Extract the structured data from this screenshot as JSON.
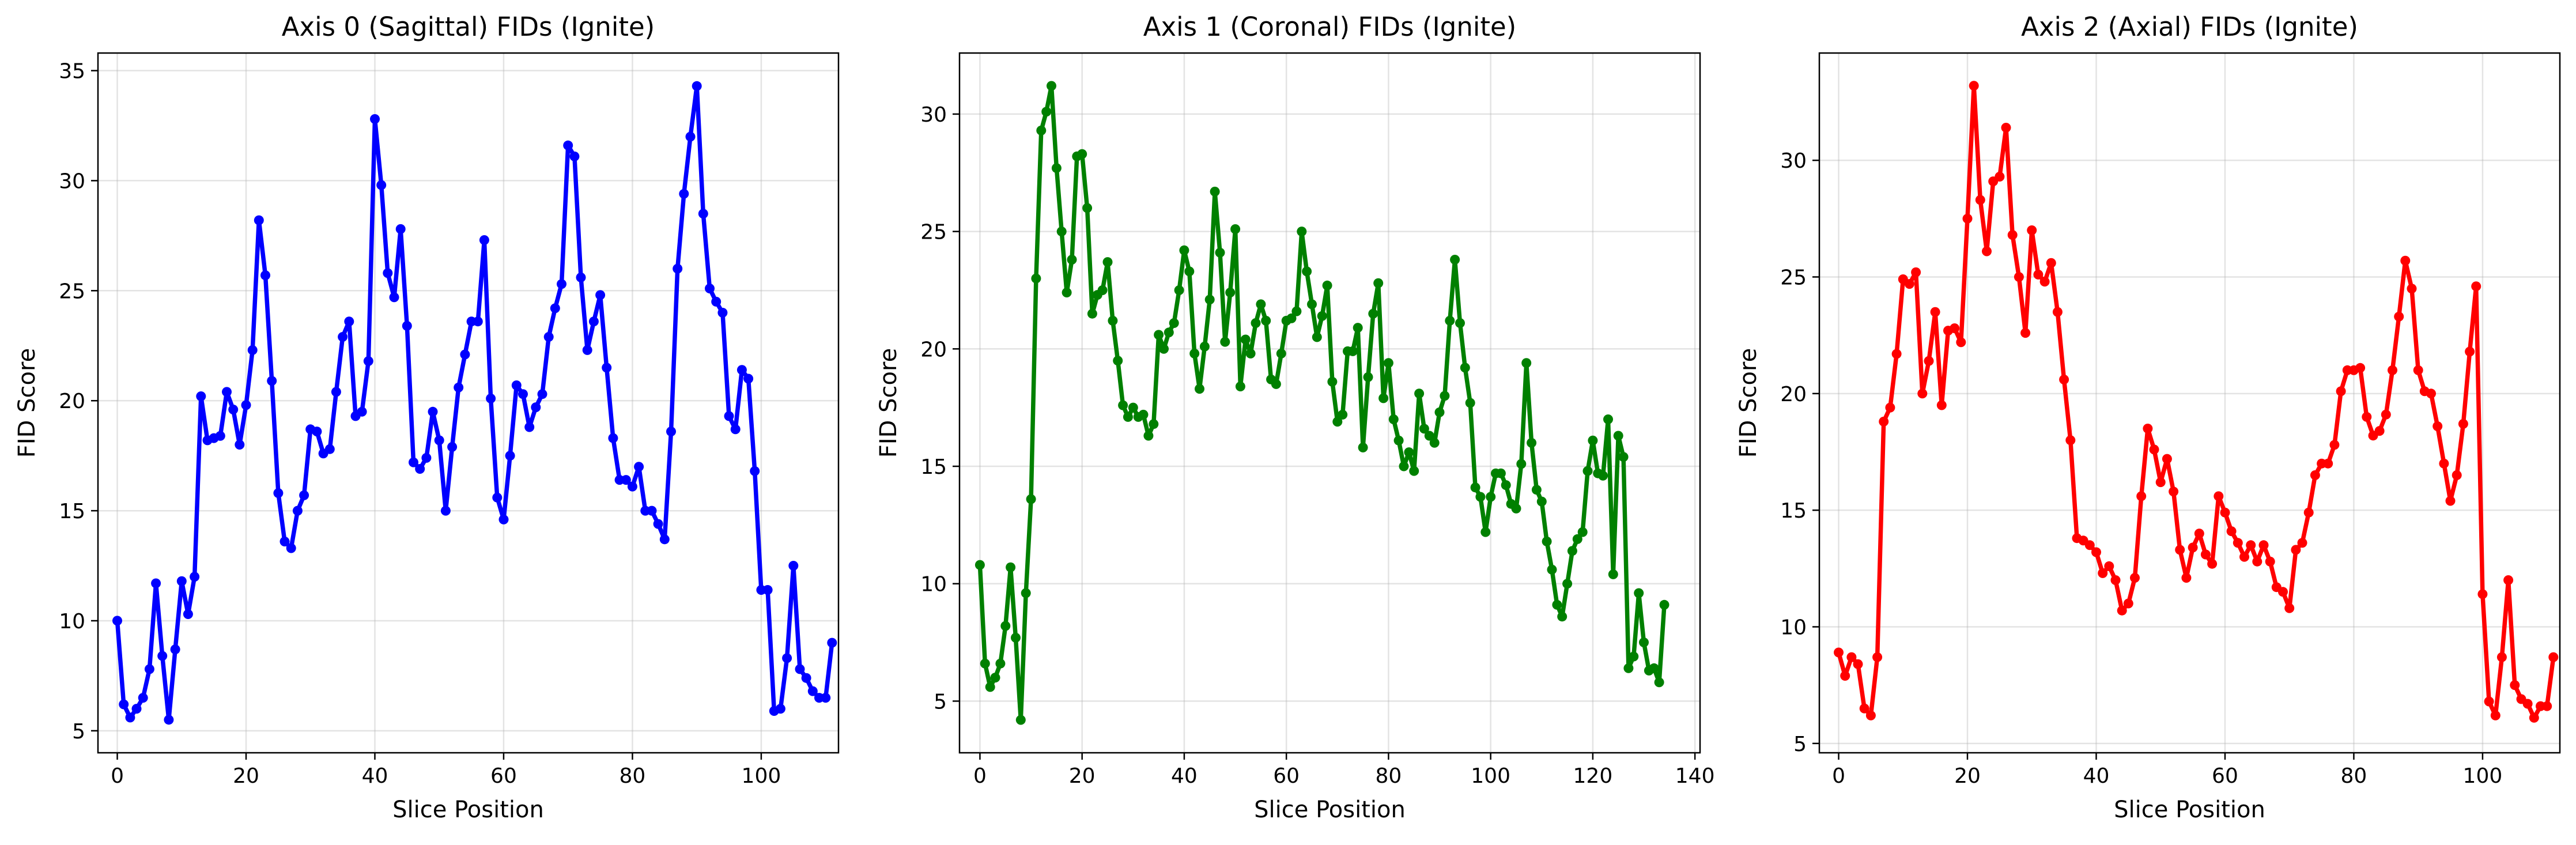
{
  "chart_data": [
    {
      "type": "line",
      "title": "Axis 0 (Sagittal) FIDs (Ignite)",
      "xlabel": "Slice Position",
      "ylabel": "FID Score",
      "color": "#0000ff",
      "xlim": [
        -3,
        112
      ],
      "ylim": [
        4.0,
        35.8
      ],
      "xticks": [
        0,
        20,
        40,
        60,
        80,
        100
      ],
      "yticks": [
        5,
        10,
        15,
        20,
        25,
        30,
        35
      ],
      "grid": true,
      "series": [
        {
          "x0": 0,
          "values": [
            10.0,
            6.2,
            5.6,
            6.0,
            6.5,
            7.8,
            11.7,
            8.4,
            5.5,
            8.7,
            11.8,
            10.3,
            12.0,
            20.2,
            18.2,
            18.3,
            18.4,
            20.4,
            19.6,
            18.0,
            19.8,
            22.3,
            28.2,
            25.7,
            20.9,
            15.8,
            13.6,
            13.3,
            15.0,
            15.7,
            18.7,
            18.6,
            17.6,
            17.8,
            20.4,
            22.9,
            23.6,
            19.3,
            19.5,
            21.8,
            32.8,
            29.8,
            25.8,
            24.7,
            27.8,
            23.4,
            17.2,
            16.9,
            17.4,
            19.5,
            18.2,
            15.0,
            17.9,
            20.6,
            22.1,
            23.6,
            23.6,
            27.3,
            20.1,
            15.6,
            14.6,
            17.5,
            20.7,
            20.3,
            18.8,
            19.7,
            20.3,
            22.9,
            24.2,
            25.3,
            31.6,
            31.1,
            25.6,
            22.3,
            23.6,
            24.8,
            21.5,
            18.3,
            16.4,
            16.4,
            16.1,
            17.0,
            15.0,
            15.0,
            14.4,
            13.7,
            18.6,
            26.0,
            29.4,
            32.0,
            34.3,
            28.5,
            25.1,
            24.5,
            24.0,
            19.3,
            18.7,
            21.4,
            21.0,
            16.8,
            11.4,
            11.4,
            5.9,
            6.0,
            8.3,
            12.5,
            7.8,
            7.4,
            6.8,
            6.5,
            6.5,
            9.0
          ]
        }
      ]
    },
    {
      "type": "line",
      "title": "Axis 1 (Coronal) FIDs (Ignite)",
      "xlabel": "Slice Position",
      "ylabel": "FID Score",
      "color": "#008000",
      "xlim": [
        -4,
        141
      ],
      "ylim": [
        2.8,
        32.6
      ],
      "xticks": [
        0,
        20,
        40,
        60,
        80,
        100,
        120,
        140
      ],
      "yticks": [
        5,
        10,
        15,
        20,
        25,
        30
      ],
      "grid": true,
      "series": [
        {
          "x0": 0,
          "values": [
            10.8,
            6.6,
            5.6,
            6.0,
            6.6,
            8.2,
            10.7,
            7.7,
            4.2,
            9.6,
            13.6,
            23.0,
            29.3,
            30.1,
            31.2,
            27.7,
            25.0,
            22.4,
            23.8,
            28.2,
            28.3,
            26.0,
            21.5,
            22.3,
            22.5,
            23.7,
            21.2,
            19.5,
            17.6,
            17.1,
            17.5,
            17.1,
            17.2,
            16.3,
            16.8,
            20.6,
            20.0,
            20.7,
            21.1,
            22.5,
            24.2,
            23.3,
            19.8,
            18.3,
            20.1,
            22.1,
            26.7,
            24.1,
            20.3,
            22.4,
            25.1,
            18.4,
            20.4,
            19.8,
            21.1,
            21.9,
            21.2,
            18.7,
            18.5,
            19.8,
            21.2,
            21.3,
            21.6,
            25.0,
            23.3,
            21.9,
            20.5,
            21.4,
            22.7,
            18.6,
            16.9,
            17.2,
            19.9,
            19.9,
            20.9,
            15.8,
            18.8,
            21.5,
            22.8,
            17.9,
            19.4,
            17.0,
            16.1,
            15.0,
            15.6,
            14.8,
            18.1,
            16.6,
            16.3,
            16.0,
            17.3,
            18.0,
            21.2,
            23.8,
            21.1,
            19.2,
            17.7,
            14.1,
            13.7,
            12.2,
            13.7,
            14.7,
            14.7,
            14.2,
            13.4,
            13.2,
            15.1,
            19.4,
            16.0,
            14.0,
            13.5,
            11.8,
            10.6,
            9.1,
            8.6,
            10.0,
            11.4,
            11.9,
            12.2,
            14.8,
            16.1,
            14.7,
            14.6,
            17.0,
            10.4,
            16.3,
            15.4,
            6.4,
            6.9,
            9.6,
            7.5,
            6.3,
            6.4,
            5.8,
            9.1
          ]
        }
      ]
    },
    {
      "type": "line",
      "title": "Axis 2 (Axial) FIDs (Ignite)",
      "xlabel": "Slice Position",
      "ylabel": "FID Score",
      "color": "#ff0000",
      "xlim": [
        -3,
        112
      ],
      "ylim": [
        4.6,
        34.6
      ],
      "xticks": [
        0,
        20,
        40,
        60,
        80,
        100
      ],
      "yticks": [
        5,
        10,
        15,
        20,
        25,
        30
      ],
      "grid": true,
      "series": [
        {
          "x0": 0,
          "values": [
            8.9,
            7.9,
            8.7,
            8.4,
            6.5,
            6.2,
            8.7,
            18.8,
            19.4,
            21.7,
            24.9,
            24.7,
            25.2,
            20.0,
            21.4,
            23.5,
            19.5,
            22.7,
            22.8,
            22.2,
            27.5,
            33.2,
            28.3,
            26.1,
            29.1,
            29.3,
            31.4,
            26.8,
            25.0,
            22.6,
            27.0,
            25.1,
            24.8,
            25.6,
            23.5,
            20.6,
            18.0,
            13.8,
            13.7,
            13.5,
            13.2,
            12.3,
            12.6,
            12.0,
            10.7,
            11.0,
            12.1,
            15.6,
            18.5,
            17.6,
            16.2,
            17.2,
            15.8,
            13.3,
            12.1,
            13.4,
            14.0,
            13.1,
            12.7,
            15.6,
            14.9,
            14.1,
            13.6,
            13.0,
            13.5,
            12.8,
            13.5,
            12.8,
            11.7,
            11.5,
            10.8,
            13.3,
            13.6,
            14.9,
            16.5,
            17.0,
            17.0,
            17.8,
            20.1,
            21.0,
            21.0,
            21.1,
            19.0,
            18.2,
            18.4,
            19.1,
            21.0,
            23.3,
            25.7,
            24.5,
            21.0,
            20.1,
            20.0,
            18.6,
            17.0,
            15.4,
            16.5,
            18.7,
            21.8,
            24.6,
            11.4,
            6.8,
            6.2,
            8.7,
            12.0,
            7.5,
            6.9,
            6.7,
            6.1,
            6.6,
            6.6,
            8.7
          ]
        }
      ]
    }
  ]
}
